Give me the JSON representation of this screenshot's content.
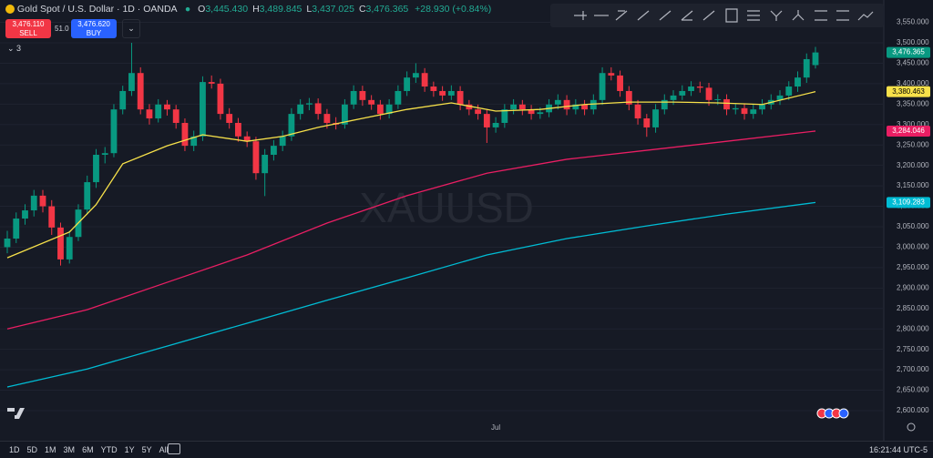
{
  "ui": {
    "symbol": "Gold Spot / U.S. Dollar · 1D · OANDA",
    "ohlc": [
      {
        "key": "O",
        "value": "3,445.430"
      },
      {
        "key": "H",
        "value": "3,489.845"
      },
      {
        "key": "L",
        "value": "3,437.025"
      },
      {
        "key": "C",
        "value": "3,476.365"
      }
    ],
    "change": "+28.930 (+0.84%)",
    "sell_price": "3,476.110",
    "sell_label": "SELL",
    "spread": "51.0",
    "buy_price": "3,476.620",
    "buy_label": "BUY",
    "indicators_count": "3",
    "ranges": [
      "1D",
      "5D",
      "1M",
      "3M",
      "6M",
      "YTD",
      "1Y",
      "5Y",
      "All"
    ],
    "time": "16:21:44 UTC-5"
  },
  "chart_data": {
    "type": "candlestick",
    "watermark": "XAUUSD",
    "up_color": "#089981",
    "down_color": "#f23645",
    "grid": true,
    "ylim": [
      2526.5,
      3604.7
    ],
    "yticks": [
      {
        "value": 2600,
        "label": "2,600.000"
      },
      {
        "value": 2650,
        "label": "2,650.000"
      },
      {
        "value": 2700,
        "label": "2,700.000"
      },
      {
        "value": 2750,
        "label": "2,750.000"
      },
      {
        "value": 2800,
        "label": "2,800.000"
      },
      {
        "value": 2850,
        "label": "2,850.000"
      },
      {
        "value": 2900,
        "label": "2,900.000"
      },
      {
        "value": 2950,
        "label": "2,950.000"
      },
      {
        "value": 3000,
        "label": "3,000.000"
      },
      {
        "value": 3050,
        "label": "3,050.000"
      },
      {
        "value": 3100,
        "label": "3,100.000"
      },
      {
        "value": 3150,
        "label": "3,150.000"
      },
      {
        "value": 3200,
        "label": "3,200.000"
      },
      {
        "value": 3250,
        "label": "3,250.000"
      },
      {
        "value": 3300,
        "label": "3,300.000"
      },
      {
        "value": 3350,
        "label": "3,350.000"
      },
      {
        "value": 3400,
        "label": "3,400.000"
      },
      {
        "value": 3450,
        "label": "3,450.000"
      },
      {
        "value": 3500,
        "label": "3,500.000"
      },
      {
        "value": 3550,
        "label": "3,550.000"
      }
    ],
    "categories": [
      null,
      null,
      null,
      null,
      null,
      null,
      null,
      null,
      null,
      null,
      null,
      null,
      null,
      null,
      null,
      null,
      null,
      null,
      null,
      null,
      null,
      null,
      null,
      null,
      null,
      null,
      null,
      null,
      null,
      null,
      null,
      null,
      null,
      null,
      null,
      null,
      null,
      null,
      null,
      null,
      null,
      null,
      null,
      null,
      null,
      null,
      null,
      null,
      null,
      null,
      null,
      null,
      null,
      null,
      null,
      "Jul",
      null,
      null,
      null,
      null,
      null,
      null,
      null,
      null,
      null,
      null,
      null,
      null,
      null,
      null,
      null,
      null,
      null,
      null,
      null,
      null,
      null,
      null,
      null,
      null,
      null,
      null,
      null,
      null,
      null,
      null,
      null,
      null,
      null,
      null,
      null,
      null
    ],
    "candles": [
      [
        3000,
        3040,
        2985,
        3021
      ],
      [
        3021,
        3085,
        3010,
        3070
      ],
      [
        3070,
        3105,
        3055,
        3090
      ],
      [
        3090,
        3140,
        3075,
        3126
      ],
      [
        3126,
        3140,
        3085,
        3100
      ],
      [
        3100,
        3115,
        3030,
        3048
      ],
      [
        3048,
        3060,
        2955,
        2970
      ],
      [
        2970,
        3040,
        2960,
        3025
      ],
      [
        3025,
        3105,
        3015,
        3092
      ],
      [
        3092,
        3175,
        3080,
        3159
      ],
      [
        3159,
        3240,
        3145,
        3226
      ],
      [
        3226,
        3245,
        3205,
        3230
      ],
      [
        3230,
        3350,
        3220,
        3337
      ],
      [
        3337,
        3395,
        3325,
        3382
      ],
      [
        3382,
        3500,
        3370,
        3426
      ],
      [
        3426,
        3440,
        3325,
        3337
      ],
      [
        3337,
        3350,
        3300,
        3315
      ],
      [
        3315,
        3362,
        3305,
        3349
      ],
      [
        3349,
        3360,
        3322,
        3337
      ],
      [
        3337,
        3348,
        3290,
        3304
      ],
      [
        3304,
        3315,
        3235,
        3248
      ],
      [
        3248,
        3285,
        3235,
        3271
      ],
      [
        3271,
        3418,
        3260,
        3404
      ],
      [
        3404,
        3420,
        3388,
        3400
      ],
      [
        3400,
        3412,
        3312,
        3326
      ],
      [
        3326,
        3340,
        3290,
        3304
      ],
      [
        3304,
        3316,
        3258,
        3271
      ],
      [
        3271,
        3283,
        3245,
        3259
      ],
      [
        3259,
        3270,
        3165,
        3181
      ],
      [
        3181,
        3240,
        3125,
        3226
      ],
      [
        3226,
        3262,
        3212,
        3248
      ],
      [
        3248,
        3285,
        3235,
        3271
      ],
      [
        3271,
        3340,
        3260,
        3326
      ],
      [
        3326,
        3362,
        3312,
        3349
      ],
      [
        3349,
        3365,
        3335,
        3352
      ],
      [
        3352,
        3364,
        3312,
        3326
      ],
      [
        3326,
        3338,
        3290,
        3304
      ],
      [
        3304,
        3318,
        3288,
        3300
      ],
      [
        3300,
        3362,
        3290,
        3349
      ],
      [
        3349,
        3396,
        3338,
        3382
      ],
      [
        3382,
        3395,
        3346,
        3360
      ],
      [
        3360,
        3372,
        3336,
        3349
      ],
      [
        3349,
        3360,
        3312,
        3326
      ],
      [
        3326,
        3362,
        3315,
        3349
      ],
      [
        3349,
        3396,
        3338,
        3382
      ],
      [
        3382,
        3430,
        3370,
        3415
      ],
      [
        3415,
        3450,
        3402,
        3426
      ],
      [
        3426,
        3438,
        3380,
        3393
      ],
      [
        3393,
        3405,
        3368,
        3382
      ],
      [
        3382,
        3394,
        3358,
        3371
      ],
      [
        3371,
        3396,
        3360,
        3382
      ],
      [
        3382,
        3394,
        3335,
        3349
      ],
      [
        3349,
        3360,
        3323,
        3337
      ],
      [
        3337,
        3349,
        3312,
        3326
      ],
      [
        3326,
        3338,
        3255,
        3293
      ],
      [
        3293,
        3318,
        3280,
        3304
      ],
      [
        3304,
        3350,
        3292,
        3337
      ],
      [
        3337,
        3362,
        3325,
        3349
      ],
      [
        3349,
        3360,
        3323,
        3337
      ],
      [
        3337,
        3348,
        3312,
        3326
      ],
      [
        3326,
        3342,
        3314,
        3330
      ],
      [
        3330,
        3362,
        3318,
        3349
      ],
      [
        3349,
        3374,
        3337,
        3360
      ],
      [
        3360,
        3372,
        3323,
        3337
      ],
      [
        3337,
        3362,
        3325,
        3349
      ],
      [
        3349,
        3360,
        3323,
        3337
      ],
      [
        3337,
        3374,
        3325,
        3360
      ],
      [
        3360,
        3440,
        3348,
        3426
      ],
      [
        3426,
        3440,
        3408,
        3420
      ],
      [
        3420,
        3432,
        3368,
        3382
      ],
      [
        3382,
        3394,
        3335,
        3349
      ],
      [
        3349,
        3360,
        3300,
        3315
      ],
      [
        3315,
        3326,
        3270,
        3293
      ],
      [
        3293,
        3350,
        3280,
        3337
      ],
      [
        3337,
        3374,
        3325,
        3360
      ],
      [
        3360,
        3384,
        3348,
        3371
      ],
      [
        3371,
        3396,
        3360,
        3382
      ],
      [
        3382,
        3406,
        3370,
        3393
      ],
      [
        3393,
        3405,
        3378,
        3390
      ],
      [
        3390,
        3402,
        3346,
        3360
      ],
      [
        3360,
        3374,
        3348,
        3362
      ],
      [
        3362,
        3374,
        3323,
        3337
      ],
      [
        3337,
        3352,
        3325,
        3340
      ],
      [
        3340,
        3352,
        3312,
        3326
      ],
      [
        3326,
        3350,
        3314,
        3337
      ],
      [
        3337,
        3362,
        3325,
        3349
      ],
      [
        3349,
        3374,
        3337,
        3360
      ],
      [
        3360,
        3384,
        3348,
        3371
      ],
      [
        3371,
        3406,
        3360,
        3393
      ],
      [
        3393,
        3430,
        3380,
        3415
      ],
      [
        3415,
        3474,
        3402,
        3460
      ],
      [
        3445.43,
        3489.845,
        3437.025,
        3476.365
      ]
    ],
    "close_label": "3,476.365",
    "series": [
      {
        "color": "#f7e14a",
        "x": [
          0,
          7,
          10,
          13,
          18,
          22,
          27,
          31,
          35,
          40,
          45,
          50,
          55,
          60,
          65,
          70,
          75,
          80,
          85,
          91
        ],
        "values": [
          2974,
          3037,
          3104,
          3204,
          3248,
          3275,
          3259,
          3271,
          3293,
          3315,
          3337,
          3353,
          3333,
          3337,
          3349,
          3355,
          3355,
          3353,
          3349,
          3380.463
        ],
        "value_label": "3,380.463"
      },
      {
        "color": "#e91e63",
        "x": [
          0,
          9,
          18,
          27,
          36,
          45,
          54,
          63,
          72,
          81,
          91
        ],
        "values": [
          2800,
          2847,
          2914,
          2981,
          3059,
          3126,
          3181,
          3215,
          3237,
          3259,
          3284.046
        ],
        "value_label": "3,284.046"
      },
      {
        "color": "#00bcd4",
        "x": [
          0,
          9,
          18,
          27,
          36,
          45,
          54,
          63,
          72,
          81,
          91
        ],
        "values": [
          2658,
          2702,
          2758,
          2814,
          2870,
          2925,
          2981,
          3021,
          3052,
          3081,
          3109.283
        ],
        "value_label": "3,109.283"
      }
    ]
  }
}
